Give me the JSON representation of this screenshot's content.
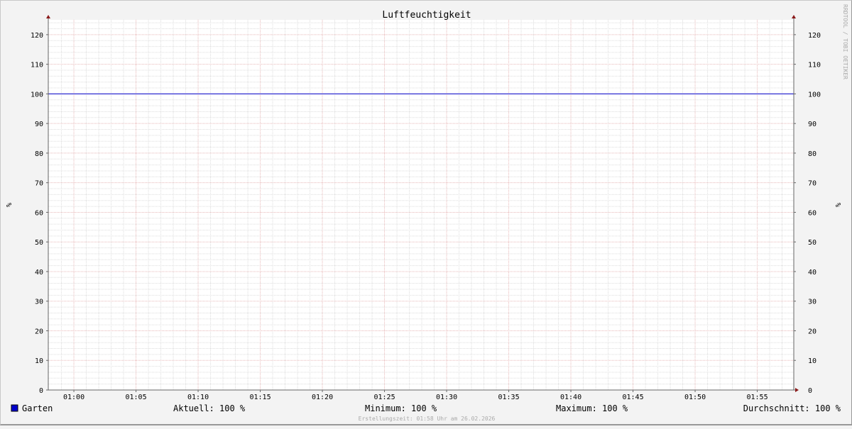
{
  "chart_data": {
    "type": "line",
    "title": "Luftfeuchtigkeit",
    "ylabel": "%",
    "ylabel_right": "%",
    "ylim": [
      0,
      125
    ],
    "yticks": [
      0,
      10,
      20,
      30,
      40,
      50,
      60,
      70,
      80,
      90,
      100,
      110,
      120
    ],
    "xlim": [
      "00:58",
      "01:58"
    ],
    "xticks": [
      "01:00",
      "01:05",
      "01:10",
      "01:15",
      "01:20",
      "01:25",
      "01:30",
      "01:35",
      "01:40",
      "01:45",
      "01:50",
      "01:55"
    ],
    "grid": true,
    "series": [
      {
        "name": "Garten",
        "color": "#0000cc",
        "x": [
          "00:58",
          "01:58"
        ],
        "y": [
          100,
          100
        ]
      }
    ],
    "legend": {
      "position": "bottom",
      "name": "Garten",
      "current": "Aktuell: 100 %",
      "minimum": "Minimum: 100 %",
      "maximum": "Maximum: 100 %",
      "average": "Durchschnitt: 100 %"
    },
    "watermark": "RRDTOOL / TOBI OETIKER",
    "footer": "Erstellungszeit: 01:58 Uhr am 26.02.2026"
  }
}
